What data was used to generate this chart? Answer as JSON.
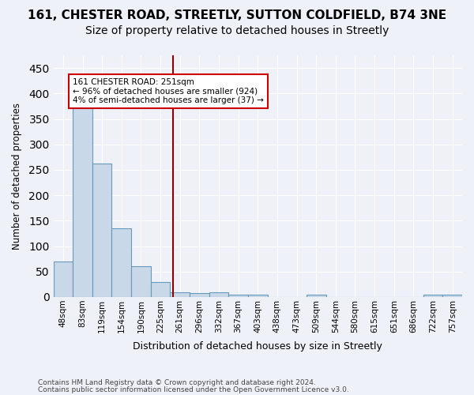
{
  "title_line1": "161, CHESTER ROAD, STREETLY, SUTTON COLDFIELD, B74 3NE",
  "title_line2": "Size of property relative to detached houses in Streetly",
  "xlabel": "Distribution of detached houses by size in Streetly",
  "ylabel": "Number of detached properties",
  "footer_line1": "Contains HM Land Registry data © Crown copyright and database right 2024.",
  "footer_line2": "Contains public sector information licensed under the Open Government Licence v3.0.",
  "bin_labels": [
    "48sqm",
    "83sqm",
    "119sqm",
    "154sqm",
    "190sqm",
    "225sqm",
    "261sqm",
    "296sqm",
    "332sqm",
    "367sqm",
    "403sqm",
    "438sqm",
    "473sqm",
    "509sqm",
    "544sqm",
    "580sqm",
    "615sqm",
    "651sqm",
    "686sqm",
    "722sqm",
    "757sqm"
  ],
  "bar_heights": [
    70,
    375,
    262,
    135,
    60,
    30,
    10,
    8,
    10,
    5,
    4,
    0,
    0,
    4,
    0,
    0,
    0,
    0,
    0,
    4,
    4
  ],
  "bar_color": "#c8d8e8",
  "bar_edge_color": "#6699bb",
  "vline_x": 5.65,
  "vline_color": "#8b0000",
  "annotation_text": "161 CHESTER ROAD: 251sqm\n← 96% of detached houses are smaller (924)\n4% of semi-detached houses are larger (37) →",
  "annotation_box_color": "white",
  "annotation_box_edge_color": "#cc0000",
  "ylim": [
    0,
    475
  ],
  "yticks": [
    0,
    50,
    100,
    150,
    200,
    250,
    300,
    350,
    400,
    450
  ],
  "bg_color": "#eef2f8",
  "plot_bg_color": "#eef2f8",
  "grid_color": "white",
  "title_fontsize": 11,
  "subtitle_fontsize": 10
}
